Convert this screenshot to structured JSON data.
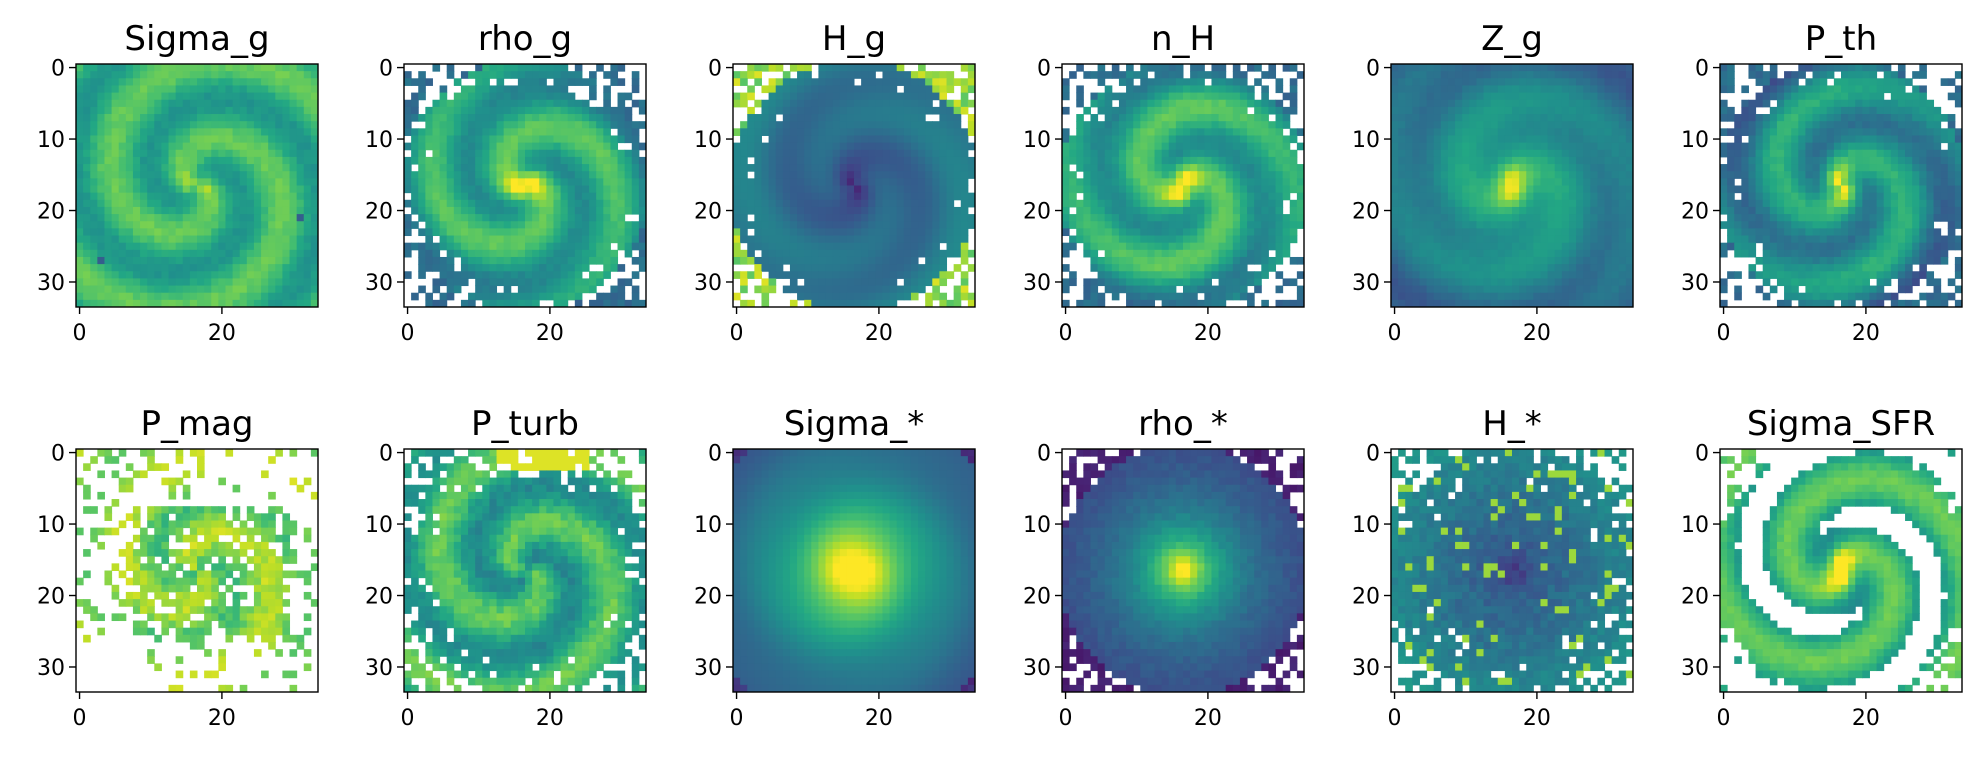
{
  "chart_data": [
    {
      "type": "heatmap",
      "title": "Sigma_g",
      "xlim": [
        -0.5,
        33.5
      ],
      "ylim": [
        33.5,
        -0.5
      ],
      "xticks": [
        0,
        20
      ],
      "yticks": [
        0,
        10,
        20,
        30
      ],
      "grid": false,
      "colormap": "viridis"
    },
    {
      "type": "heatmap",
      "title": "rho_g",
      "xlim": [
        -0.5,
        33.5
      ],
      "ylim": [
        33.5,
        -0.5
      ],
      "xticks": [
        0,
        20
      ],
      "yticks": [
        0,
        10,
        20,
        30
      ],
      "grid": false,
      "colormap": "viridis"
    },
    {
      "type": "heatmap",
      "title": "H_g",
      "xlim": [
        -0.5,
        33.5
      ],
      "ylim": [
        33.5,
        -0.5
      ],
      "xticks": [
        0,
        20
      ],
      "yticks": [
        0,
        10,
        20,
        30
      ],
      "grid": false,
      "colormap": "viridis"
    },
    {
      "type": "heatmap",
      "title": "n_H",
      "xlim": [
        -0.5,
        33.5
      ],
      "ylim": [
        33.5,
        -0.5
      ],
      "xticks": [
        0,
        20
      ],
      "yticks": [
        0,
        10,
        20,
        30
      ],
      "grid": false,
      "colormap": "viridis"
    },
    {
      "type": "heatmap",
      "title": "Z_g",
      "xlim": [
        -0.5,
        33.5
      ],
      "ylim": [
        33.5,
        -0.5
      ],
      "xticks": [
        0,
        20
      ],
      "yticks": [
        0,
        10,
        20,
        30
      ],
      "grid": false,
      "colormap": "viridis"
    },
    {
      "type": "heatmap",
      "title": "P_th",
      "xlim": [
        -0.5,
        33.5
      ],
      "ylim": [
        33.5,
        -0.5
      ],
      "xticks": [
        0,
        20
      ],
      "yticks": [
        0,
        10,
        20,
        30
      ],
      "grid": false,
      "colormap": "viridis"
    },
    {
      "type": "heatmap",
      "title": "P_mag",
      "xlim": [
        -0.5,
        33.5
      ],
      "ylim": [
        33.5,
        -0.5
      ],
      "xticks": [
        0,
        20
      ],
      "yticks": [
        0,
        10,
        20,
        30
      ],
      "grid": false,
      "colormap": "viridis"
    },
    {
      "type": "heatmap",
      "title": "P_turb",
      "xlim": [
        -0.5,
        33.5
      ],
      "ylim": [
        33.5,
        -0.5
      ],
      "xticks": [
        0,
        20
      ],
      "yticks": [
        0,
        10,
        20,
        30
      ],
      "grid": false,
      "colormap": "viridis"
    },
    {
      "type": "heatmap",
      "title": "Sigma_*",
      "xlim": [
        -0.5,
        33.5
      ],
      "ylim": [
        33.5,
        -0.5
      ],
      "xticks": [
        0,
        20
      ],
      "yticks": [
        0,
        10,
        20,
        30
      ],
      "grid": false,
      "colormap": "viridis"
    },
    {
      "type": "heatmap",
      "title": "rho_*",
      "xlim": [
        -0.5,
        33.5
      ],
      "ylim": [
        33.5,
        -0.5
      ],
      "xticks": [
        0,
        20
      ],
      "yticks": [
        0,
        10,
        20,
        30
      ],
      "grid": false,
      "colormap": "viridis"
    },
    {
      "type": "heatmap",
      "title": "H_*",
      "xlim": [
        -0.5,
        33.5
      ],
      "ylim": [
        33.5,
        -0.5
      ],
      "xticks": [
        0,
        20
      ],
      "yticks": [
        0,
        10,
        20,
        30
      ],
      "grid": false,
      "colormap": "viridis"
    },
    {
      "type": "heatmap",
      "title": "Sigma_SFR",
      "xlim": [
        -0.5,
        33.5
      ],
      "ylim": [
        33.5,
        -0.5
      ],
      "xticks": [
        0,
        20
      ],
      "yticks": [
        0,
        10,
        20,
        30
      ],
      "grid": false,
      "colormap": "viridis"
    }
  ]
}
